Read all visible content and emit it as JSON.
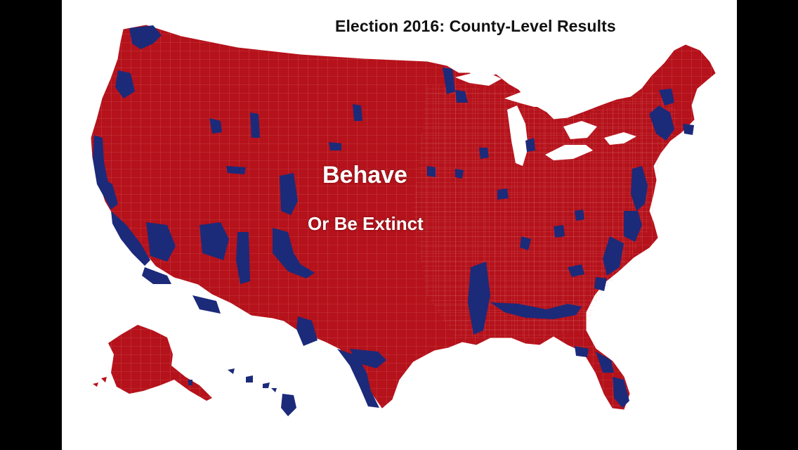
{
  "title": "Election 2016: County-Level Results",
  "overlay_line_1": "Behave",
  "overlay_line_2": "Or Be Extinct",
  "colors": {
    "republican_red": "#b5121b",
    "democrat_blue": "#1c2a7a",
    "county_border": "#e89a9a",
    "background": "#ffffff",
    "letterbox": "#000000"
  }
}
